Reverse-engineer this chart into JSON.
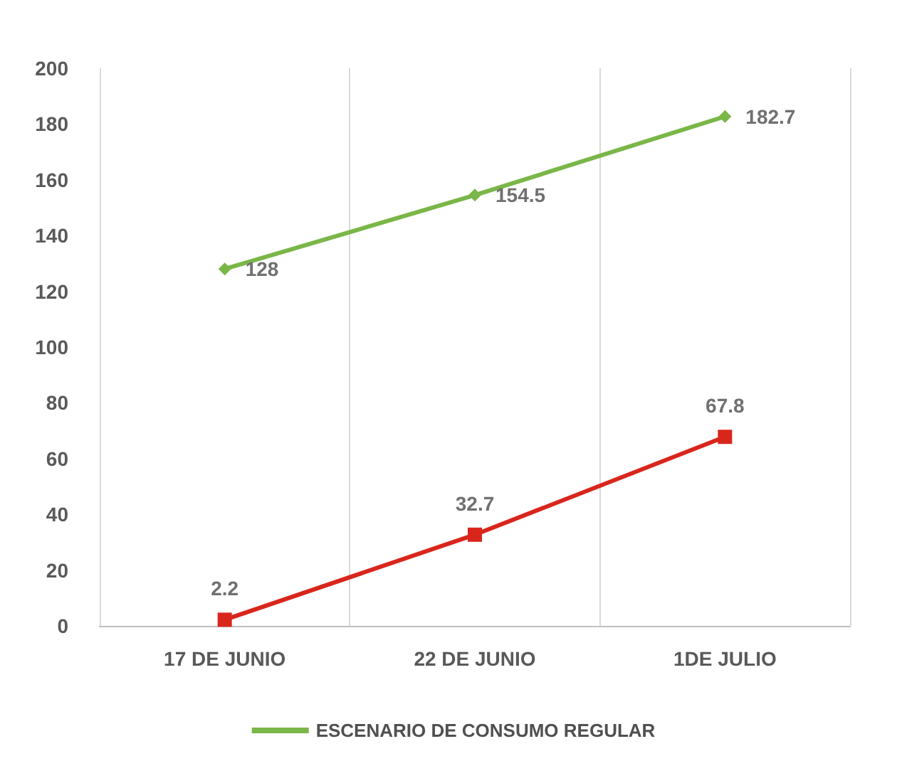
{
  "chart_data": {
    "type": "line",
    "categories": [
      "17 DE JUNIO",
      "22 DE JUNIO",
      "1DE JULIO"
    ],
    "series": [
      {
        "name": "ESCENARIO DE CONSUMO REGULAR",
        "color": "#7ab648",
        "marker": "diamond",
        "values": [
          128,
          154.5,
          182.7
        ]
      },
      {
        "color": "#d9261c",
        "marker": "square",
        "values": [
          2.2,
          32.7,
          67.8
        ]
      }
    ],
    "ylim": [
      0,
      200
    ],
    "yticks": [
      0,
      20,
      40,
      60,
      80,
      100,
      120,
      140,
      160,
      180,
      200
    ],
    "grid": "x",
    "legend": "bottom",
    "data_labels": true
  }
}
